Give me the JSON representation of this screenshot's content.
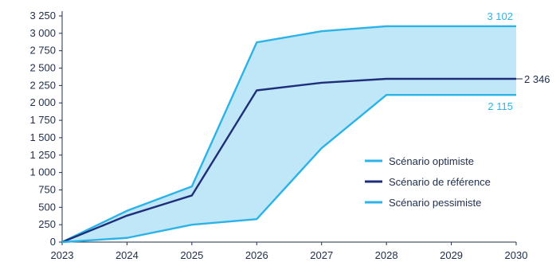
{
  "chart_data": {
    "type": "area",
    "title": "",
    "xlabel": "",
    "ylabel": "",
    "x": [
      "2023",
      "2024",
      "2025",
      "2026",
      "2027",
      "2028",
      "2029",
      "2030"
    ],
    "ylim": [
      0,
      3250
    ],
    "yticks": [
      0,
      250,
      500,
      750,
      1000,
      1250,
      1500,
      1750,
      2000,
      2250,
      2500,
      2750,
      3000,
      3250
    ],
    "ytick_labels": [
      "0",
      "250",
      "500",
      "750",
      "1 000",
      "1 250",
      "1 500",
      "1 750",
      "2 000",
      "2 250",
      "2 500",
      "2 750",
      "3 000",
      "3 250"
    ],
    "grid": false,
    "legend_position": "lower-right",
    "series": [
      {
        "name": "Scénario optimiste",
        "values": [
          0,
          450,
          800,
          2870,
          3030,
          3102,
          3102,
          3102
        ],
        "color": "#2bb3e8",
        "end_label": "3 102"
      },
      {
        "name": "Scénario de référence",
        "values": [
          0,
          380,
          670,
          2180,
          2290,
          2346,
          2346,
          2346
        ],
        "color": "#1f2e7a",
        "end_label": "2 346"
      },
      {
        "name": "Scénario pessimiste",
        "values": [
          0,
          60,
          250,
          330,
          1350,
          2115,
          2115,
          2115
        ],
        "color": "#2bb3e8",
        "end_label": "2 115"
      }
    ],
    "band_color": "#bfe7f7"
  }
}
